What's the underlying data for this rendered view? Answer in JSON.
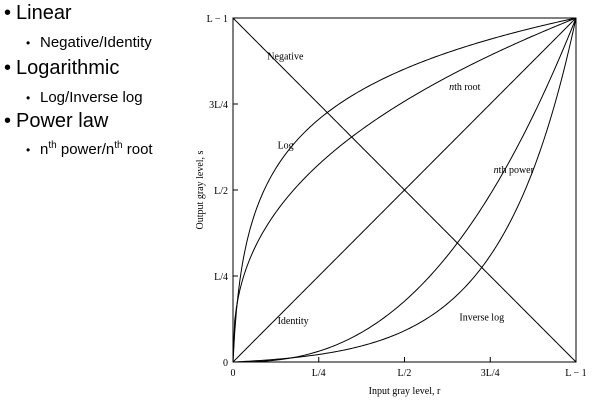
{
  "bullets": {
    "linear": "Linear",
    "linear_sub": "Negative/Identity",
    "logarithmic": "Logarithmic",
    "log_sub": "Log/Inverse log",
    "power": "Power law",
    "power_sub_n1": "n",
    "power_sub_th1": "th",
    "power_sub_mid": " power/n",
    "power_sub_th2": "th",
    "power_sub_end": " root"
  },
  "chart_data": {
    "type": "line",
    "xlabel": "Input gray level, r",
    "ylabel": "Output gray level, s",
    "xlim": [
      0,
      1
    ],
    "ylim": [
      0,
      1
    ],
    "x_ticks": [
      {
        "value": 0,
        "label": "0"
      },
      {
        "value": 0.25,
        "label": "L/4"
      },
      {
        "value": 0.5,
        "label": "L/2"
      },
      {
        "value": 0.75,
        "label": "3L/4"
      },
      {
        "value": 1,
        "label": "L − 1"
      }
    ],
    "y_ticks": [
      {
        "value": 0,
        "label": "0"
      },
      {
        "value": 0.25,
        "label": "L/4"
      },
      {
        "value": 0.5,
        "label": "L/2"
      },
      {
        "value": 0.75,
        "label": "3L/4"
      },
      {
        "value": 1,
        "label": "L − 1"
      }
    ],
    "series": [
      {
        "name": "Negative",
        "kind": "negative",
        "label_at": [
          0.1,
          0.88
        ]
      },
      {
        "name": "Identity",
        "kind": "identity",
        "label_at": [
          0.13,
          0.11
        ]
      },
      {
        "name": "Log",
        "kind": "log",
        "label_at": [
          0.13,
          0.62
        ]
      },
      {
        "name": "Inverse log",
        "kind": "invlog",
        "label_at": [
          0.66,
          0.12
        ]
      },
      {
        "name": "nth root",
        "kind": "root",
        "label_at": [
          0.63,
          0.79
        ]
      },
      {
        "name": "nth power",
        "kind": "power",
        "label_at": [
          0.76,
          0.55
        ]
      }
    ],
    "grid": false,
    "legend": "none"
  }
}
